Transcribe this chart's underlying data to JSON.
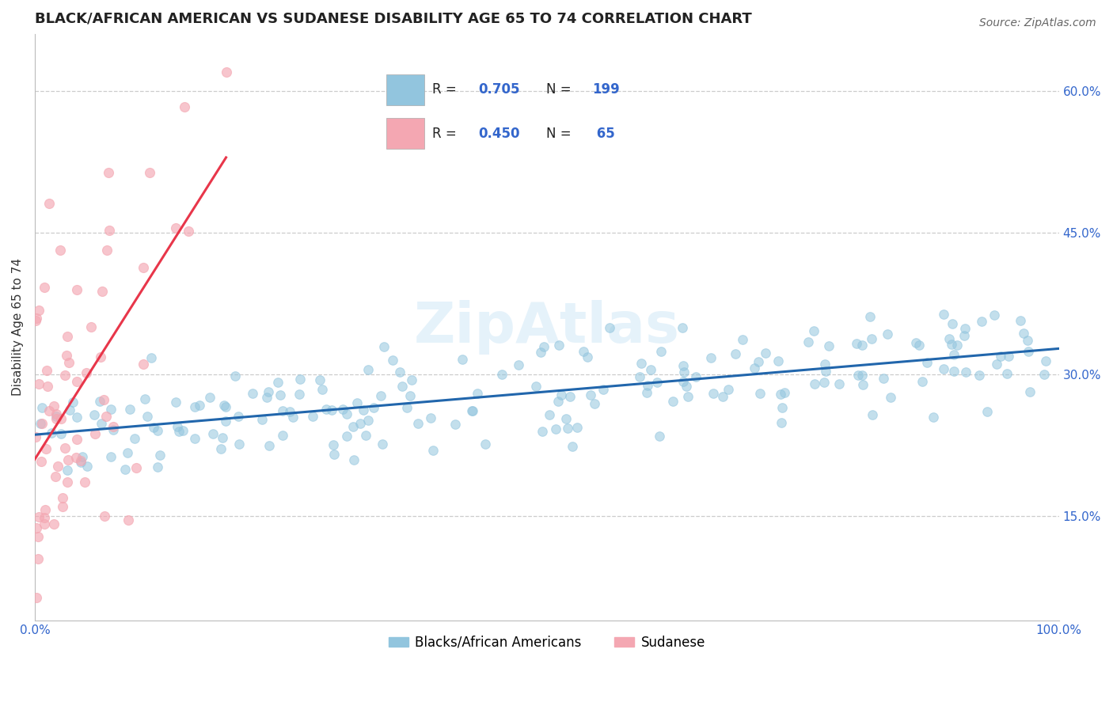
{
  "title": "BLACK/AFRICAN AMERICAN VS SUDANESE DISABILITY AGE 65 TO 74 CORRELATION CHART",
  "source": "Source: ZipAtlas.com",
  "ylabel": "Disability Age 65 to 74",
  "blue_R": 0.705,
  "blue_N": 199,
  "pink_R": 0.45,
  "pink_N": 65,
  "blue_color": "#92c5de",
  "blue_line_color": "#2166ac",
  "pink_color": "#f4a7b2",
  "pink_line_color": "#e8364a",
  "watermark": "ZipAtlas",
  "legend_label_blue": "Blacks/African Americans",
  "legend_label_pink": "Sudanese",
  "xmin": 0.0,
  "xmax": 1.0,
  "ymin": 0.04,
  "ymax": 0.66,
  "yticks": [
    0.15,
    0.3,
    0.45,
    0.6
  ],
  "ytick_labels": [
    "15.0%",
    "30.0%",
    "45.0%",
    "60.0%"
  ],
  "xtick_labels": [
    "0.0%",
    "100.0%"
  ],
  "title_fontsize": 13,
  "axis_label_fontsize": 11,
  "tick_fontsize": 11,
  "blue_seed": 42,
  "pink_seed": 99
}
